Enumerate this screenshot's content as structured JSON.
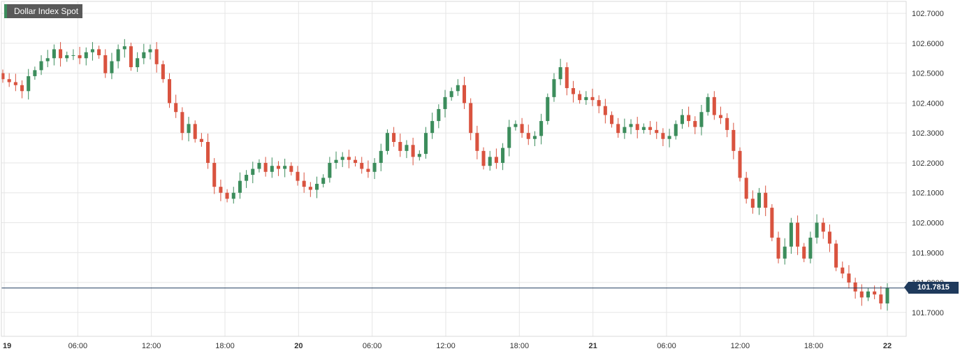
{
  "chart_data": {
    "type": "candlestick",
    "title": "Dollar Index Spot",
    "current_price": 101.7815,
    "current_price_label": "101.7815",
    "ylim": [
      101.62,
      102.74
    ],
    "y_ticks": [
      101.7,
      101.8,
      101.9,
      102.0,
      102.1,
      102.2,
      102.3,
      102.4,
      102.5,
      102.6,
      102.7
    ],
    "y_tick_labels": [
      "101.7000",
      "101.8000",
      "101.9000",
      "102.0000",
      "102.1000",
      "102.2000",
      "102.3000",
      "102.4000",
      "102.5000",
      "102.6000",
      "102.7000"
    ],
    "x_ticks": [
      0,
      6,
      12,
      18,
      24,
      30,
      36,
      42,
      48,
      54,
      60,
      66,
      72
    ],
    "x_tick_labels": [
      "19",
      "06:00",
      "12:00",
      "18:00",
      "20",
      "06:00",
      "12:00",
      "18:00",
      "21",
      "06:00",
      "12:00",
      "18:00",
      "22"
    ],
    "colors": {
      "up": "#3c8d5c",
      "down": "#d9533f",
      "price_line": "#1f3a5c",
      "grid": "#e6e6e6"
    },
    "candles": [
      [
        102.5,
        102.48
      ],
      [
        102.48,
        102.47
      ],
      [
        102.47,
        102.46
      ],
      [
        102.46,
        102.44
      ],
      [
        102.44,
        102.49
      ],
      [
        102.49,
        102.51
      ],
      [
        102.51,
        102.54
      ],
      [
        102.54,
        102.55
      ],
      [
        102.55,
        102.58
      ],
      [
        102.58,
        102.55
      ],
      [
        102.55,
        102.56
      ],
      [
        102.56,
        102.56
      ],
      [
        102.56,
        102.55
      ],
      [
        102.55,
        102.57
      ],
      [
        102.57,
        102.58
      ],
      [
        102.58,
        102.56
      ],
      [
        102.56,
        102.5
      ],
      [
        102.5,
        102.54
      ],
      [
        102.54,
        102.58
      ],
      [
        102.58,
        102.59
      ],
      [
        102.59,
        102.52
      ],
      [
        102.52,
        102.55
      ],
      [
        102.55,
        102.57
      ],
      [
        102.57,
        102.58
      ],
      [
        102.58,
        102.53
      ],
      [
        102.53,
        102.48
      ],
      [
        102.48,
        102.4
      ],
      [
        102.4,
        102.37
      ],
      [
        102.37,
        102.3
      ],
      [
        102.3,
        102.33
      ],
      [
        102.33,
        102.28
      ],
      [
        102.28,
        102.27
      ],
      [
        102.27,
        102.2
      ],
      [
        102.2,
        102.12
      ],
      [
        102.12,
        102.1
      ],
      [
        102.1,
        102.08
      ],
      [
        102.08,
        102.1
      ],
      [
        102.1,
        102.14
      ],
      [
        102.14,
        102.16
      ],
      [
        102.16,
        102.18
      ],
      [
        102.18,
        102.2
      ],
      [
        102.2,
        102.17
      ],
      [
        102.17,
        102.19
      ],
      [
        102.19,
        102.18
      ],
      [
        102.18,
        102.19
      ],
      [
        102.19,
        102.17
      ],
      [
        102.17,
        102.14
      ],
      [
        102.14,
        102.12
      ],
      [
        102.12,
        102.11
      ],
      [
        102.11,
        102.13
      ],
      [
        102.13,
        102.15
      ],
      [
        102.15,
        102.2
      ],
      [
        102.2,
        102.21
      ],
      [
        102.21,
        102.22
      ],
      [
        102.22,
        102.21
      ],
      [
        102.21,
        102.2
      ],
      [
        102.2,
        102.18
      ],
      [
        102.18,
        102.17
      ],
      [
        102.17,
        102.2
      ],
      [
        102.2,
        102.24
      ],
      [
        102.24,
        102.3
      ],
      [
        102.3,
        102.27
      ],
      [
        102.27,
        102.24
      ],
      [
        102.24,
        102.26
      ],
      [
        102.26,
        102.22
      ],
      [
        102.22,
        102.23
      ],
      [
        102.23,
        102.3
      ],
      [
        102.3,
        102.34
      ],
      [
        102.34,
        102.38
      ],
      [
        102.38,
        102.42
      ],
      [
        102.42,
        102.44
      ],
      [
        102.44,
        102.46
      ],
      [
        102.46,
        102.4
      ],
      [
        102.4,
        102.3
      ],
      [
        102.3,
        102.24
      ],
      [
        102.24,
        102.19
      ],
      [
        102.19,
        102.22
      ],
      [
        102.22,
        102.2
      ],
      [
        102.2,
        102.25
      ],
      [
        102.25,
        102.32
      ],
      [
        102.32,
        102.33
      ],
      [
        102.33,
        102.3
      ],
      [
        102.3,
        102.28
      ],
      [
        102.28,
        102.29
      ],
      [
        102.29,
        102.34
      ],
      [
        102.34,
        102.42
      ],
      [
        102.42,
        102.48
      ],
      [
        102.48,
        102.52
      ],
      [
        102.52,
        102.45
      ],
      [
        102.45,
        102.43
      ],
      [
        102.43,
        102.41
      ],
      [
        102.41,
        102.42
      ],
      [
        102.42,
        102.41
      ],
      [
        102.41,
        102.39
      ],
      [
        102.39,
        102.36
      ],
      [
        102.36,
        102.33
      ],
      [
        102.33,
        102.3
      ],
      [
        102.3,
        102.32
      ],
      [
        102.32,
        102.33
      ],
      [
        102.33,
        102.31
      ],
      [
        102.31,
        102.32
      ],
      [
        102.32,
        102.31
      ],
      [
        102.31,
        102.3
      ],
      [
        102.3,
        102.28
      ],
      [
        102.28,
        102.29
      ],
      [
        102.29,
        102.33
      ],
      [
        102.33,
        102.36
      ],
      [
        102.36,
        102.34
      ],
      [
        102.34,
        102.32
      ],
      [
        102.32,
        102.37
      ],
      [
        102.37,
        102.42
      ],
      [
        102.42,
        102.36
      ],
      [
        102.36,
        102.35
      ],
      [
        102.35,
        102.31
      ],
      [
        102.31,
        102.24
      ],
      [
        102.24,
        102.15
      ],
      [
        102.15,
        102.08
      ],
      [
        102.08,
        102.05
      ],
      [
        102.05,
        102.1
      ],
      [
        102.1,
        102.05
      ],
      [
        102.05,
        101.95
      ],
      [
        101.95,
        101.88
      ],
      [
        101.88,
        101.92
      ],
      [
        101.92,
        102.0
      ],
      [
        102.0,
        101.92
      ],
      [
        101.92,
        101.88
      ],
      [
        101.88,
        101.95
      ],
      [
        101.95,
        102.0
      ],
      [
        102.0,
        101.97
      ],
      [
        101.97,
        101.93
      ],
      [
        101.93,
        101.85
      ],
      [
        101.85,
        101.83
      ],
      [
        101.83,
        101.8
      ],
      [
        101.8,
        101.77
      ],
      [
        101.77,
        101.75
      ],
      [
        101.75,
        101.77
      ],
      [
        101.77,
        101.76
      ],
      [
        101.76,
        101.73
      ],
      [
        101.73,
        101.7815
      ]
    ]
  }
}
